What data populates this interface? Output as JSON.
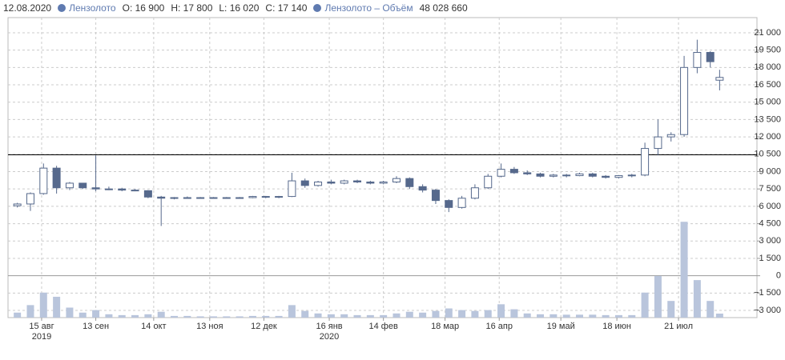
{
  "chart_data": {
    "type": "candlestick",
    "legend": {
      "date": "12.08.2020",
      "series": "Лензолото",
      "open": "O: 16 900",
      "high": "H: 17 800",
      "low": "L: 16 020",
      "close": "C: 17 140",
      "volume_series": "Лензолото – Объём",
      "volume": "48 028 660"
    },
    "x": [
      "2019-08-02",
      "2019-08-09",
      "2019-08-16",
      "2019-08-23",
      "2019-08-30",
      "2019-09-06",
      "2019-09-13",
      "2019-09-20",
      "2019-09-27",
      "2019-10-04",
      "2019-10-11",
      "2019-10-18",
      "2019-10-25",
      "2019-11-01",
      "2019-11-08",
      "2019-11-15",
      "2019-11-22",
      "2019-11-29",
      "2019-12-06",
      "2019-12-13",
      "2019-12-20",
      "2019-12-27",
      "2020-01-03",
      "2020-01-10",
      "2020-01-17",
      "2020-01-24",
      "2020-01-31",
      "2020-02-07",
      "2020-02-14",
      "2020-02-21",
      "2020-02-28",
      "2020-03-06",
      "2020-03-13",
      "2020-03-20",
      "2020-03-27",
      "2020-04-03",
      "2020-04-10",
      "2020-04-17",
      "2020-04-24",
      "2020-05-01",
      "2020-05-08",
      "2020-05-15",
      "2020-05-22",
      "2020-05-29",
      "2020-06-05",
      "2020-06-12",
      "2020-06-19",
      "2020-06-26",
      "2020-07-03",
      "2020-07-10",
      "2020-07-17",
      "2020-07-24",
      "2020-07-31",
      "2020-08-07",
      "2020-08-12"
    ],
    "open": [
      6050,
      6200,
      7100,
      9300,
      7600,
      8000,
      7600,
      7500,
      7500,
      7400,
      7350,
      6800,
      6700,
      6750,
      6750,
      6700,
      6750,
      6700,
      6750,
      6850,
      6800,
      6850,
      8200,
      7800,
      8100,
      8000,
      8200,
      8100,
      8000,
      8100,
      8400,
      7700,
      7400,
      6500,
      5900,
      6700,
      7600,
      8600,
      9200,
      8900,
      8800,
      8600,
      8700,
      8650,
      8800,
      8600,
      8500,
      8650,
      8700,
      11000,
      12000,
      12200,
      18000,
      19300,
      16900
    ],
    "high": [
      6300,
      7200,
      9700,
      9500,
      8100,
      8000,
      10400,
      7700,
      7600,
      7500,
      7400,
      6900,
      6800,
      6850,
      6800,
      6800,
      6800,
      6800,
      6900,
      6900,
      6900,
      8900,
      8400,
      8200,
      8300,
      8300,
      8300,
      8200,
      8200,
      8600,
      8500,
      7900,
      7500,
      6600,
      6900,
      7900,
      8800,
      9700,
      9400,
      9100,
      8900,
      8800,
      8800,
      8900,
      8900,
      8700,
      8700,
      8800,
      11500,
      13500,
      12400,
      19000,
      20400,
      19400,
      17800
    ],
    "low": [
      5900,
      5600,
      7000,
      7100,
      7400,
      7500,
      7300,
      7400,
      7300,
      7300,
      6700,
      4300,
      6600,
      6650,
      6650,
      6650,
      6650,
      6650,
      6700,
      6700,
      6700,
      6800,
      7600,
      7700,
      7900,
      7900,
      8000,
      7900,
      7900,
      8000,
      7500,
      7200,
      6200,
      5500,
      5800,
      6600,
      7500,
      8500,
      8800,
      8700,
      8500,
      8500,
      8500,
      8600,
      8500,
      8400,
      8400,
      8500,
      8600,
      10400,
      11600,
      12000,
      17500,
      18000,
      16020
    ],
    "close": [
      6200,
      7100,
      9300,
      7600,
      8000,
      7600,
      7500,
      7500,
      7400,
      7350,
      6800,
      6700,
      6750,
      6750,
      6700,
      6750,
      6700,
      6750,
      6850,
      6800,
      6850,
      8200,
      7800,
      8100,
      8000,
      8200,
      8100,
      8000,
      8100,
      8400,
      7700,
      7400,
      6500,
      5900,
      6700,
      7600,
      8600,
      9200,
      8900,
      8800,
      8600,
      8700,
      8650,
      8800,
      8600,
      8500,
      8650,
      8700,
      11000,
      12000,
      12200,
      18000,
      19300,
      18500,
      17140
    ],
    "volume": [
      60000000,
      150000000,
      300000000,
      250000000,
      120000000,
      60000000,
      90000000,
      40000000,
      30000000,
      30000000,
      40000000,
      70000000,
      20000000,
      20000000,
      15000000,
      15000000,
      15000000,
      15000000,
      20000000,
      20000000,
      20000000,
      150000000,
      80000000,
      50000000,
      40000000,
      40000000,
      30000000,
      30000000,
      30000000,
      50000000,
      70000000,
      60000000,
      80000000,
      110000000,
      90000000,
      80000000,
      90000000,
      160000000,
      100000000,
      50000000,
      40000000,
      40000000,
      35000000,
      35000000,
      35000000,
      30000000,
      30000000,
      30000000,
      300000000,
      500000000,
      200000000,
      1150000000,
      450000000,
      200000000,
      48028660
    ],
    "color": "#56698c",
    "volume_color": "#b9c5dc",
    "xlim": [
      "2019-07-28",
      "2020-09-01"
    ],
    "xticks": [
      {
        "value": "2019-08-15",
        "label": "15 авг"
      },
      {
        "value": "2019-09-13",
        "label": "13 сен"
      },
      {
        "value": "2019-10-14",
        "label": "14 окт"
      },
      {
        "value": "2019-11-13",
        "label": "13 ноя"
      },
      {
        "value": "2019-12-12",
        "label": "12 дек"
      },
      {
        "value": "2020-01-16",
        "label": "16 янв"
      },
      {
        "value": "2020-02-14",
        "label": "14 фев"
      },
      {
        "value": "2020-03-18",
        "label": "18 мар"
      },
      {
        "value": "2020-04-16",
        "label": "16 апр"
      },
      {
        "value": "2020-05-19",
        "label": "19 май"
      },
      {
        "value": "2020-06-18",
        "label": "18 июн"
      },
      {
        "value": "2020-07-21",
        "label": "21 июл"
      }
    ],
    "x_year_labels": [
      {
        "value": "2019-08-15",
        "label": "2019"
      },
      {
        "value": "2020-01-16",
        "label": "2020"
      }
    ],
    "ylim": [
      -3620,
      22310
    ],
    "yticks": [
      {
        "value": -3000,
        "label": "−3 000"
      },
      {
        "value": -1500,
        "label": "−1 500"
      },
      0,
      {
        "value": 1500,
        "label": "1 500"
      },
      {
        "value": 3000,
        "label": "3 000"
      },
      {
        "value": 4500,
        "label": "4 500"
      },
      {
        "value": 6000,
        "label": "6 000"
      },
      {
        "value": 7500,
        "label": "7 500"
      },
      {
        "value": 9000,
        "label": "9 000"
      },
      {
        "value": 10500,
        "label": "10 500"
      },
      {
        "value": 12000,
        "label": "12 000"
      },
      {
        "value": 13500,
        "label": "13 500"
      },
      {
        "value": 15000,
        "label": "15 000"
      },
      {
        "value": 16500,
        "label": "16 500"
      },
      {
        "value": 18000,
        "label": "18 000"
      },
      {
        "value": 19500,
        "label": "19 500"
      },
      {
        "value": 21000,
        "label": "21 000"
      }
    ],
    "y2lim": [
      0,
      1200000000
    ],
    "reference_line": 10450,
    "grid": true
  }
}
